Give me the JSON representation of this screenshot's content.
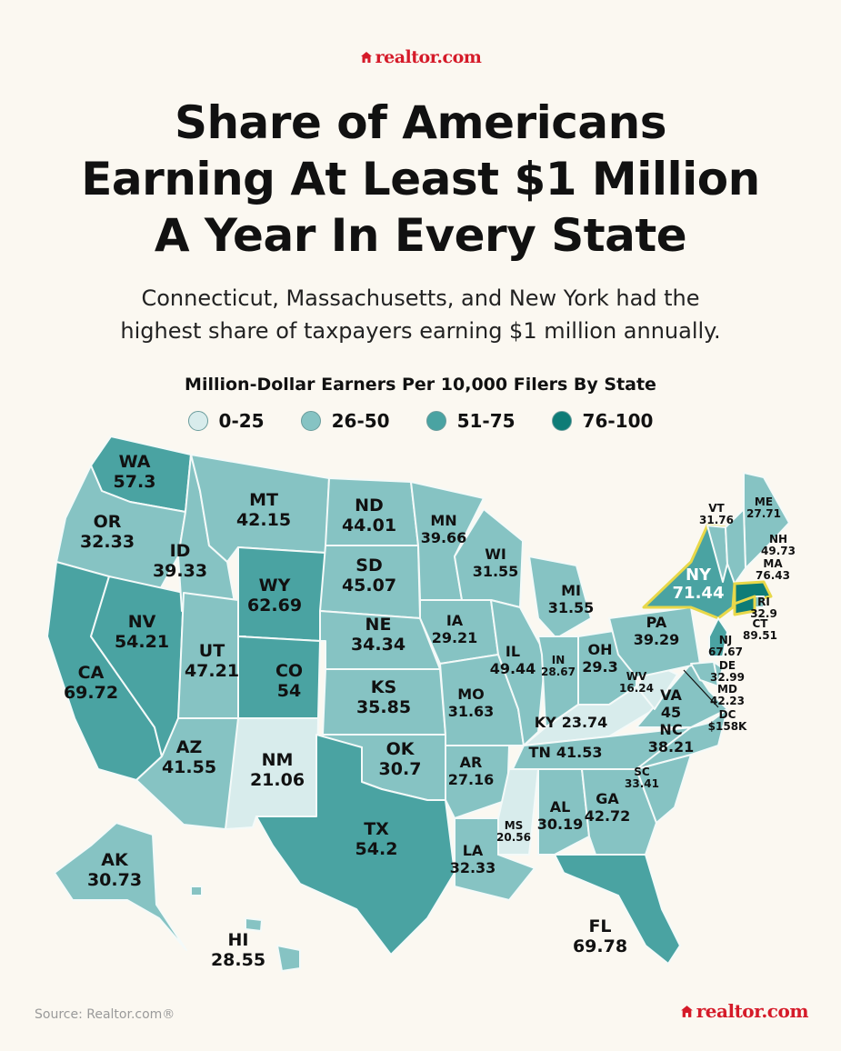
{
  "brand": "realtor.com",
  "title_lines": [
    "Share of Americans",
    "Earning At Least $1 Million",
    "A Year In Every State"
  ],
  "subtitle_lines": [
    "Connecticut, Massachusetts, and New York had the",
    "highest share of taxpayers earning $1 million annually."
  ],
  "legend": {
    "title": "Million-Dollar Earners Per 10,000 Filers By State",
    "items": [
      {
        "label": "0-25",
        "color": "#d8ecec"
      },
      {
        "label": "26-50",
        "color": "#86c3c3"
      },
      {
        "label": "51-75",
        "color": "#4aa3a2"
      },
      {
        "label": "76-100",
        "color": "#0e7c77"
      }
    ]
  },
  "colors": {
    "bin_0_25": "#d8ecec",
    "bin_26_50": "#86c3c3",
    "bin_51_75": "#4aa3a2",
    "bin_76_100": "#0e7c77",
    "highlight_border": "#e8d84a",
    "state_border": "#f4faf9",
    "brand_red": "#d51b29"
  },
  "states": [
    {
      "abbr": "WA",
      "value": "57.3"
    },
    {
      "abbr": "OR",
      "value": "32.33"
    },
    {
      "abbr": "CA",
      "value": "69.72"
    },
    {
      "abbr": "NV",
      "value": "54.21"
    },
    {
      "abbr": "ID",
      "value": "39.33"
    },
    {
      "abbr": "MT",
      "value": "42.15"
    },
    {
      "abbr": "WY",
      "value": "62.69"
    },
    {
      "abbr": "UT",
      "value": "47.21"
    },
    {
      "abbr": "AZ",
      "value": "41.55"
    },
    {
      "abbr": "CO",
      "value": "54"
    },
    {
      "abbr": "NM",
      "value": "21.06"
    },
    {
      "abbr": "ND",
      "value": "44.01"
    },
    {
      "abbr": "SD",
      "value": "45.07"
    },
    {
      "abbr": "NE",
      "value": "34.34"
    },
    {
      "abbr": "KS",
      "value": "35.85"
    },
    {
      "abbr": "OK",
      "value": "30.7"
    },
    {
      "abbr": "TX",
      "value": "54.2"
    },
    {
      "abbr": "MN",
      "value": "39.66"
    },
    {
      "abbr": "IA",
      "value": "29.21"
    },
    {
      "abbr": "MO",
      "value": "31.63"
    },
    {
      "abbr": "AR",
      "value": "27.16"
    },
    {
      "abbr": "LA",
      "value": "32.33"
    },
    {
      "abbr": "WI",
      "value": "31.55"
    },
    {
      "abbr": "IL",
      "value": "49.44"
    },
    {
      "abbr": "MI",
      "value": "31.55"
    },
    {
      "abbr": "IN",
      "value": "28.67"
    },
    {
      "abbr": "OH",
      "value": "29.3"
    },
    {
      "abbr": "KY",
      "value": "23.74"
    },
    {
      "abbr": "TN",
      "value": "41.53"
    },
    {
      "abbr": "MS",
      "value": "20.56"
    },
    {
      "abbr": "AL",
      "value": "30.19"
    },
    {
      "abbr": "GA",
      "value": "42.72"
    },
    {
      "abbr": "FL",
      "value": "69.78"
    },
    {
      "abbr": "SC",
      "value": "33.41"
    },
    {
      "abbr": "NC",
      "value": "38.21"
    },
    {
      "abbr": "VA",
      "value": "45"
    },
    {
      "abbr": "WV",
      "value": "16.24"
    },
    {
      "abbr": "PA",
      "value": "39.29"
    },
    {
      "abbr": "NY",
      "value": "71.44"
    },
    {
      "abbr": "VT",
      "value": "31.76"
    },
    {
      "abbr": "ME",
      "value": "27.71"
    },
    {
      "abbr": "NH",
      "value": "49.73"
    },
    {
      "abbr": "MA",
      "value": "76.43"
    },
    {
      "abbr": "RI",
      "value": "32.9"
    },
    {
      "abbr": "CT",
      "value": "89.51"
    },
    {
      "abbr": "NJ",
      "value": "67.67"
    },
    {
      "abbr": "DE",
      "value": "32.99"
    },
    {
      "abbr": "MD",
      "value": "42.23"
    },
    {
      "abbr": "DC",
      "value": "$158K"
    },
    {
      "abbr": "AK",
      "value": "30.73"
    },
    {
      "abbr": "HI",
      "value": "28.55"
    }
  ],
  "source": "Source: Realtor.com®"
}
